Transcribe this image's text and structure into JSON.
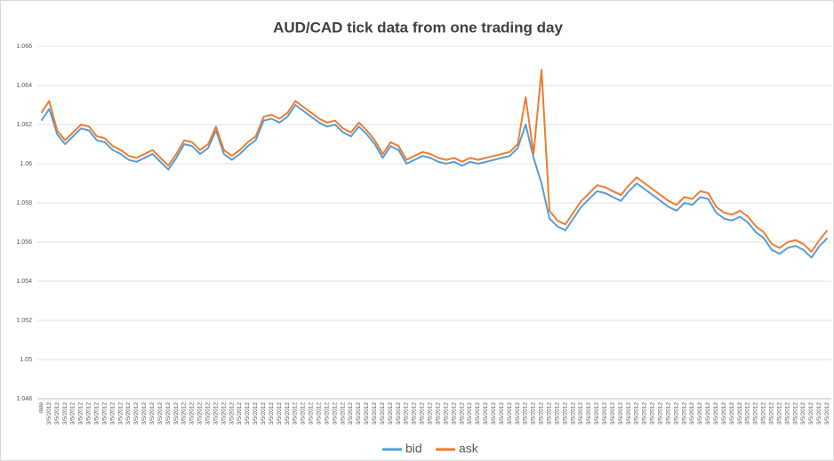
{
  "chart_data": {
    "type": "line",
    "title": "AUD/CAD tick data from one trading day",
    "categories": [
      "date",
      "3/5/2012",
      "3/5/2012",
      "3/5/2012",
      "3/5/2012",
      "3/5/2012",
      "3/5/2012",
      "3/5/2012",
      "3/5/2012",
      "3/5/2012",
      "3/5/2012",
      "3/5/2012",
      "3/5/2012",
      "3/5/2012",
      "3/5/2012",
      "3/5/2012",
      "3/5/2012",
      "3/5/2012",
      "3/5/2012",
      "3/5/2012",
      "3/5/2012",
      "3/5/2012",
      "3/5/2012",
      "3/5/2012",
      "3/5/2012",
      "3/5/2012",
      "3/5/2012",
      "3/5/2012",
      "3/5/2012",
      "3/5/2012",
      "3/5/2012",
      "3/5/2012",
      "3/5/2012",
      "3/5/2012",
      "3/5/2012",
      "3/5/2012",
      "3/5/2012",
      "3/5/2012",
      "3/5/2012",
      "3/5/2012",
      "3/5/2012",
      "3/5/2012",
      "3/5/2012",
      "3/5/2012",
      "3/5/2012",
      "3/5/2012",
      "3/5/2012",
      "3/5/2012",
      "3/5/2012",
      "3/5/2012",
      "3/5/2012",
      "3/5/2012",
      "3/5/2012",
      "3/5/2012",
      "3/5/2012",
      "3/5/2012",
      "3/5/2012",
      "3/5/2012",
      "3/5/2012",
      "3/5/2012",
      "3/5/2012",
      "3/5/2012",
      "3/5/2012",
      "3/5/2012",
      "3/5/2012",
      "3/5/2012",
      "3/5/2012",
      "3/5/2012",
      "3/5/2012",
      "3/5/2012",
      "3/5/2012",
      "3/5/2012",
      "3/5/2012",
      "3/5/2012",
      "3/5/2012",
      "3/5/2012",
      "3/5/2012",
      "3/5/2012",
      "3/5/2012",
      "3/5/2012",
      "3/5/2012",
      "3/5/2012",
      "3/5/2012",
      "3/5/2012",
      "3/5/2012",
      "3/5/2012",
      "3/5/2012",
      "3/5/2012",
      "3/5/2012",
      "3/5/2012",
      "3/5/2012",
      "3/5/2012",
      "3/5/2012",
      "3/5/2012",
      "3/5/2012",
      "3/5/2012",
      "3/5/2012",
      "3/5/2012",
      "3/5/2012",
      "3/5/2012"
    ],
    "series": [
      {
        "name": "bid",
        "color": "#5b9bd5",
        "values": [
          1.0622,
          1.0628,
          1.0615,
          1.061,
          1.0614,
          1.0618,
          1.0617,
          1.0612,
          1.0611,
          1.0607,
          1.0605,
          1.0602,
          1.0601,
          1.0603,
          1.0605,
          1.0601,
          1.0597,
          1.0603,
          1.061,
          1.0609,
          1.0605,
          1.0608,
          1.0617,
          1.0605,
          1.0602,
          1.0605,
          1.0609,
          1.0612,
          1.0622,
          1.0623,
          1.0621,
          1.0624,
          1.063,
          1.0627,
          1.0624,
          1.0621,
          1.0619,
          1.062,
          1.0616,
          1.0614,
          1.0619,
          1.0615,
          1.061,
          1.0603,
          1.0609,
          1.0607,
          1.06,
          1.0602,
          1.0604,
          1.0603,
          1.0601,
          1.06,
          1.0601,
          1.0599,
          1.0601,
          1.06,
          1.0601,
          1.0602,
          1.0603,
          1.0604,
          1.0608,
          1.062,
          1.0603,
          1.059,
          1.0572,
          1.0568,
          1.0566,
          1.0572,
          1.0578,
          1.0582,
          1.0586,
          1.0585,
          1.0583,
          1.0581,
          1.0586,
          1.059,
          1.0587,
          1.0584,
          1.0581,
          1.0578,
          1.0576,
          1.058,
          1.0579,
          1.0583,
          1.0582,
          1.0575,
          1.0572,
          1.0571,
          1.0573,
          1.057,
          1.0565,
          1.0562,
          1.0556,
          1.0554,
          1.0557,
          1.0558,
          1.0556,
          1.0552,
          1.0558,
          1.0562
        ]
      },
      {
        "name": "ask",
        "color": "#ed7d31",
        "values": [
          1.0626,
          1.0632,
          1.0617,
          1.0612,
          1.0616,
          1.062,
          1.0619,
          1.0614,
          1.0613,
          1.0609,
          1.0607,
          1.0604,
          1.0603,
          1.0605,
          1.0607,
          1.0603,
          1.0599,
          1.0605,
          1.0612,
          1.0611,
          1.0607,
          1.061,
          1.0619,
          1.0607,
          1.0604,
          1.0607,
          1.0611,
          1.0614,
          1.0624,
          1.0625,
          1.0623,
          1.0626,
          1.0632,
          1.0629,
          1.0626,
          1.0623,
          1.0621,
          1.0622,
          1.0618,
          1.0616,
          1.0621,
          1.0617,
          1.0612,
          1.0605,
          1.0611,
          1.0609,
          1.0602,
          1.0604,
          1.0606,
          1.0605,
          1.0603,
          1.0602,
          1.0603,
          1.0601,
          1.0603,
          1.0602,
          1.0603,
          1.0604,
          1.0605,
          1.0606,
          1.061,
          1.0634,
          1.0605,
          1.0648,
          1.0576,
          1.0571,
          1.0569,
          1.0575,
          1.0581,
          1.0585,
          1.0589,
          1.0588,
          1.0586,
          1.0584,
          1.0589,
          1.0593,
          1.059,
          1.0587,
          1.0584,
          1.0581,
          1.0579,
          1.0583,
          1.0582,
          1.0586,
          1.0585,
          1.0578,
          1.0575,
          1.0574,
          1.0576,
          1.0573,
          1.0568,
          1.0565,
          1.0559,
          1.0557,
          1.056,
          1.0561,
          1.0559,
          1.0555,
          1.0561,
          1.0566
        ]
      }
    ],
    "ylim": [
      1.048,
      1.066
    ],
    "yticks": [
      1.048,
      1.05,
      1.052,
      1.054,
      1.056,
      1.058,
      1.06,
      1.062,
      1.064,
      1.066
    ],
    "grid": true,
    "legend": "bottom"
  }
}
